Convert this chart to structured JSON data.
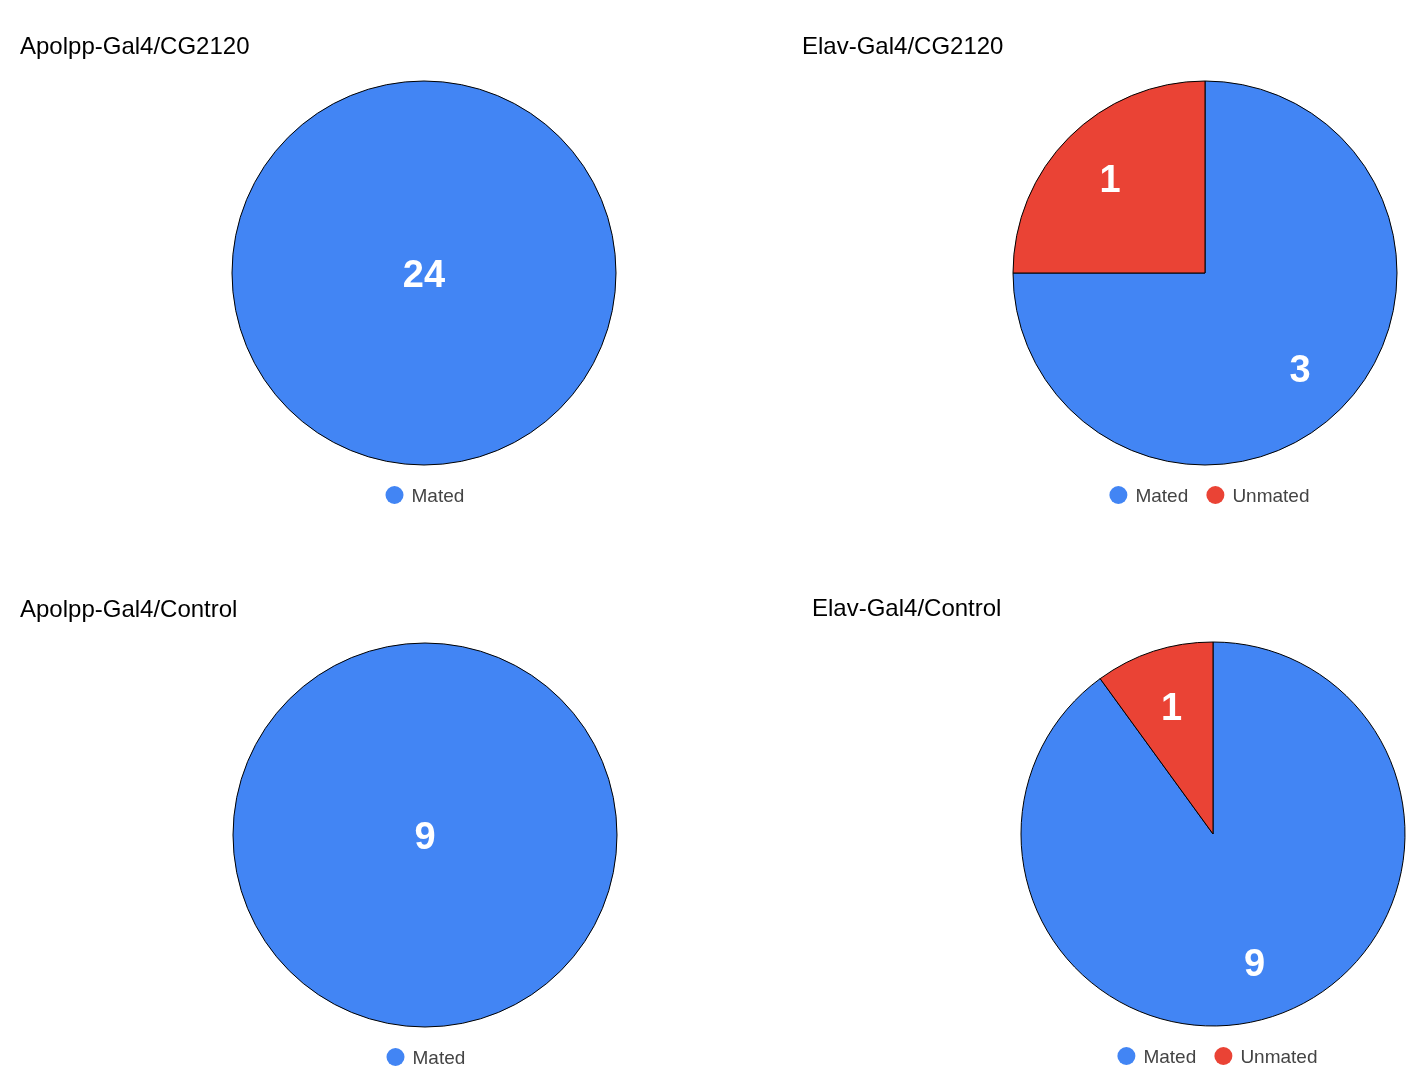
{
  "chart_data": [
    {
      "type": "pie",
      "title": "Apolpp-Gal4/CG2120",
      "categories": [
        "Mated"
      ],
      "values": [
        24
      ],
      "colors": [
        "#4285f4"
      ],
      "data_labels": true,
      "legend": "bottom"
    },
    {
      "type": "pie",
      "title": "Elav-Gal4/CG2120",
      "categories": [
        "Mated",
        "Unmated"
      ],
      "values": [
        3,
        1
      ],
      "colors": [
        "#4285f4",
        "#ea4335"
      ],
      "data_labels": true,
      "legend": "bottom"
    },
    {
      "type": "pie",
      "title": "Apolpp-Gal4/Control",
      "categories": [
        "Mated"
      ],
      "values": [
        9
      ],
      "colors": [
        "#4285f4"
      ],
      "data_labels": true,
      "legend": "bottom"
    },
    {
      "type": "pie",
      "title": "Elav-Gal4/Control",
      "categories": [
        "Mated",
        "Unmated"
      ],
      "values": [
        9,
        1
      ],
      "colors": [
        "#4285f4",
        "#ea4335"
      ],
      "data_labels": true,
      "legend": "bottom"
    }
  ]
}
